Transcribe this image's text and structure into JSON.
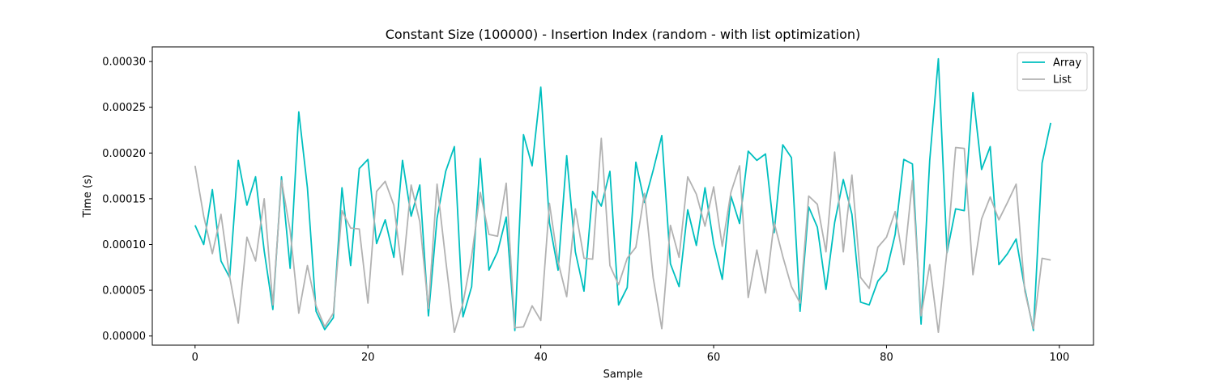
{
  "chart_data": {
    "type": "line",
    "title": "Constant Size (100000) - Insertion Index (random - with list optimization)",
    "xlabel": "Sample",
    "ylabel": "Time (s)",
    "xlim": [
      -4.95,
      103.95
    ],
    "ylim": [
      -1e-05,
      0.000316
    ],
    "x_ticks": [
      0,
      20,
      40,
      60,
      80,
      100
    ],
    "y_ticks": [
      0.0,
      5e-05,
      0.0001,
      0.00015,
      0.0002,
      0.00025,
      0.0003
    ],
    "x_tick_labels": [
      "0",
      "20",
      "40",
      "60",
      "80",
      "100"
    ],
    "y_tick_labels": [
      "0.00000",
      "0.00005",
      "0.00010",
      "0.00015",
      "0.00020",
      "0.00025",
      "0.00030"
    ],
    "grid": false,
    "legend_position": "top-right",
    "x": [
      0,
      1,
      2,
      3,
      4,
      5,
      6,
      7,
      8,
      9,
      10,
      11,
      12,
      13,
      14,
      15,
      16,
      17,
      18,
      19,
      20,
      21,
      22,
      23,
      24,
      25,
      26,
      27,
      28,
      29,
      30,
      31,
      32,
      33,
      34,
      35,
      36,
      37,
      38,
      39,
      40,
      41,
      42,
      43,
      44,
      45,
      46,
      47,
      48,
      49,
      50,
      51,
      52,
      53,
      54,
      55,
      56,
      57,
      58,
      59,
      60,
      61,
      62,
      63,
      64,
      65,
      66,
      67,
      68,
      69,
      70,
      71,
      72,
      73,
      74,
      75,
      76,
      77,
      78,
      79,
      80,
      81,
      82,
      83,
      84,
      85,
      86,
      87,
      88,
      89,
      90,
      91,
      92,
      93,
      94,
      95,
      96,
      97,
      98,
      99
    ],
    "series": [
      {
        "name": "Array",
        "color": "#00bfbf",
        "values": [
          0.000121,
          0.0001,
          0.00016,
          8.2e-05,
          6.4e-05,
          0.000192,
          0.000143,
          0.000174,
          9.3e-05,
          2.9e-05,
          0.000174,
          7.4e-05,
          0.000245,
          0.000162,
          2.7e-05,
          7e-06,
          2e-05,
          0.000162,
          7.7e-05,
          0.000183,
          0.000193,
          0.000101,
          0.000127,
          8.6e-05,
          0.000192,
          0.000131,
          0.000165,
          2.2e-05,
          0.000129,
          0.00018,
          0.000207,
          2.1e-05,
          5.4e-05,
          0.000194,
          7.2e-05,
          9.2e-05,
          0.00013,
          6e-06,
          0.00022,
          0.000186,
          0.000272,
          0.000124,
          7.2e-05,
          0.000197,
          9.2e-05,
          4.9e-05,
          0.000158,
          0.000142,
          0.00018,
          3.4e-05,
          5.3e-05,
          0.00019,
          0.000146,
          0.000181,
          0.000219,
          7.9e-05,
          5.4e-05,
          0.000138,
          9.9e-05,
          0.000162,
          0.000101,
          6.2e-05,
          0.000153,
          0.000123,
          0.000202,
          0.000192,
          0.000199,
          0.000113,
          0.000209,
          0.000195,
          2.7e-05,
          0.000141,
          0.000119,
          5.1e-05,
          0.000124,
          0.000171,
          0.000133,
          3.7e-05,
          3.4e-05,
          6e-05,
          7.1e-05,
          0.000111,
          0.000193,
          0.000188,
          1.3e-05,
          0.000192,
          0.000303,
          9.1e-05,
          0.000139,
          0.000137,
          0.000266,
          0.000182,
          0.000207,
          7.8e-05,
          9e-05,
          0.000106,
          5.2e-05,
          6e-06,
          0.000189,
          0.000233
        ]
      },
      {
        "name": "List",
        "color": "#b2b2b2",
        "values": [
          0.000186,
          0.000131,
          9e-05,
          0.000133,
          6.5e-05,
          1.4e-05,
          0.000108,
          8.2e-05,
          0.00015,
          3.4e-05,
          0.00017,
          0.000115,
          2.5e-05,
          7.7e-05,
          3.3e-05,
          1e-05,
          2.5e-05,
          0.000137,
          0.000118,
          0.000117,
          3.6e-05,
          0.000158,
          0.000169,
          0.000143,
          6.7e-05,
          0.000165,
          0.000125,
          3e-05,
          0.000166,
          8.3e-05,
          4e-06,
          3.6e-05,
          8.7e-05,
          0.000157,
          0.000111,
          0.000109,
          0.000167,
          9e-06,
          1e-05,
          3.3e-05,
          1.7e-05,
          0.000145,
          8.1e-05,
          4.3e-05,
          0.000139,
          8.5e-05,
          8.4e-05,
          0.000216,
          7.7e-05,
          5.6e-05,
          8.5e-05,
          9.7e-05,
          0.000156,
          6.4e-05,
          8e-06,
          0.000121,
          8.6e-05,
          0.000174,
          0.000155,
          0.00012,
          0.000163,
          9.8e-05,
          0.000157,
          0.000186,
          4.2e-05,
          9.4e-05,
          4.7e-05,
          0.000124,
          8.7e-05,
          5.4e-05,
          3.6e-05,
          0.000153,
          0.000144,
          9.2e-05,
          0.000201,
          9.2e-05,
          0.000176,
          6.4e-05,
          5.2e-05,
          9.7e-05,
          0.000108,
          0.000136,
          7.8e-05,
          0.00017,
          2.2e-05,
          7.8e-05,
          4e-06,
          9.3e-05,
          0.000206,
          0.000205,
          6.7e-05,
          0.000128,
          0.000152,
          0.000127,
          0.000146,
          0.000166,
          4.9e-05,
          8e-06,
          8.5e-05,
          8.3e-05
        ]
      }
    ]
  }
}
